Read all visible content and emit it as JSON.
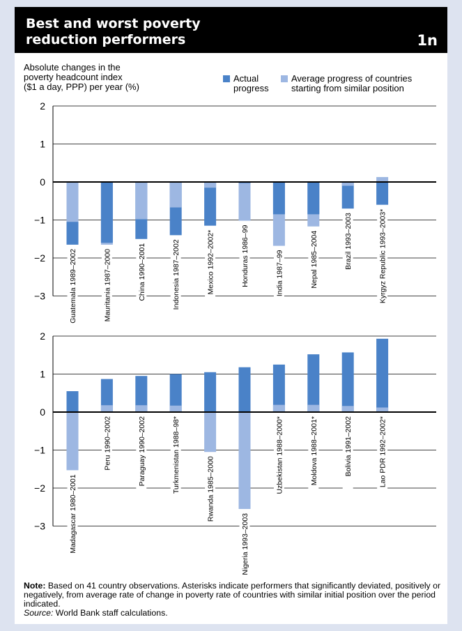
{
  "header": {
    "title_line1": "Best and worst poverty",
    "title_line2": "reduction performers",
    "figure_id": "1n"
  },
  "ylabel_lines": [
    "Absolute changes in the",
    "poverty headcount index",
    "($1 a day, PPP) per year (%)"
  ],
  "legend": {
    "actual": "Actual progress",
    "average": "Average progress of countries starting from similar position"
  },
  "colors": {
    "actual": "#4a82c8",
    "average": "#9db7e2",
    "frame": "#dde3f0",
    "header": "#000000"
  },
  "chart_data": [
    {
      "type": "bar",
      "stacking": "overlapping",
      "ylim": [
        -3,
        2
      ],
      "yticks": [
        "2",
        "1",
        "0",
        "−1",
        "−2",
        "−3"
      ],
      "grid": true,
      "legend_position": "top-right",
      "categories": [
        "Guatemala 1989–2002",
        "Mauritania 1987–2000",
        "China 1990–2001",
        "Indonesia 1987–2002",
        "Mexico 1992–2002*",
        "Honduras 1986–99",
        "India 1987–99",
        "Nepal 1985–2004",
        "Brazil 1993–2003",
        "Kyrgyz Republic 1993–2003*"
      ],
      "series": [
        {
          "name": "Actual progress",
          "values": [
            -1.65,
            -1.6,
            -1.5,
            -1.4,
            -1.15,
            -0.03,
            -0.85,
            -0.85,
            -0.7,
            -0.6
          ]
        },
        {
          "name": "Average progress of countries starting from similar position",
          "values": [
            -1.05,
            -1.65,
            -0.98,
            -0.67,
            -0.15,
            -1.02,
            -1.68,
            -1.17,
            -0.1,
            0.13
          ]
        }
      ]
    },
    {
      "type": "bar",
      "stacking": "overlapping",
      "ylim": [
        -3,
        2
      ],
      "yticks": [
        "2",
        "1",
        "0",
        "−1",
        "−2",
        "−3"
      ],
      "grid": true,
      "categories": [
        "Madagascar 1980–2001",
        "Peru 1990–2002",
        "Paraguay 1990–2002",
        "Turkmenistan 1988–98*",
        "Rwanda 1985–2000",
        "Nigeria 1993–2003",
        "Uzbekistan 1988–2000*",
        "Moldova 1988–2001*",
        "Bolivia 1991–2002",
        "Lao PDR 1992–2002*"
      ],
      "series": [
        {
          "name": "Actual progress",
          "values": [
            0.55,
            0.87,
            0.95,
            1.0,
            1.05,
            1.18,
            1.25,
            1.52,
            1.57,
            1.93
          ]
        },
        {
          "name": "Average progress of countries starting from similar position",
          "values": [
            -1.53,
            0.18,
            0.18,
            0.17,
            -1.05,
            -2.55,
            0.19,
            0.19,
            0.16,
            0.12
          ]
        }
      ]
    }
  ],
  "note": {
    "bold": "Note:",
    "text": " Based on 41 country observations. Asterisks indicate performers that significantly deviated, positively or negatively, from average rate of change in poverty rate of countries with similar initial position over the period indicated.",
    "source_label": "Source:",
    "source_text": " World Bank staff calculations."
  }
}
